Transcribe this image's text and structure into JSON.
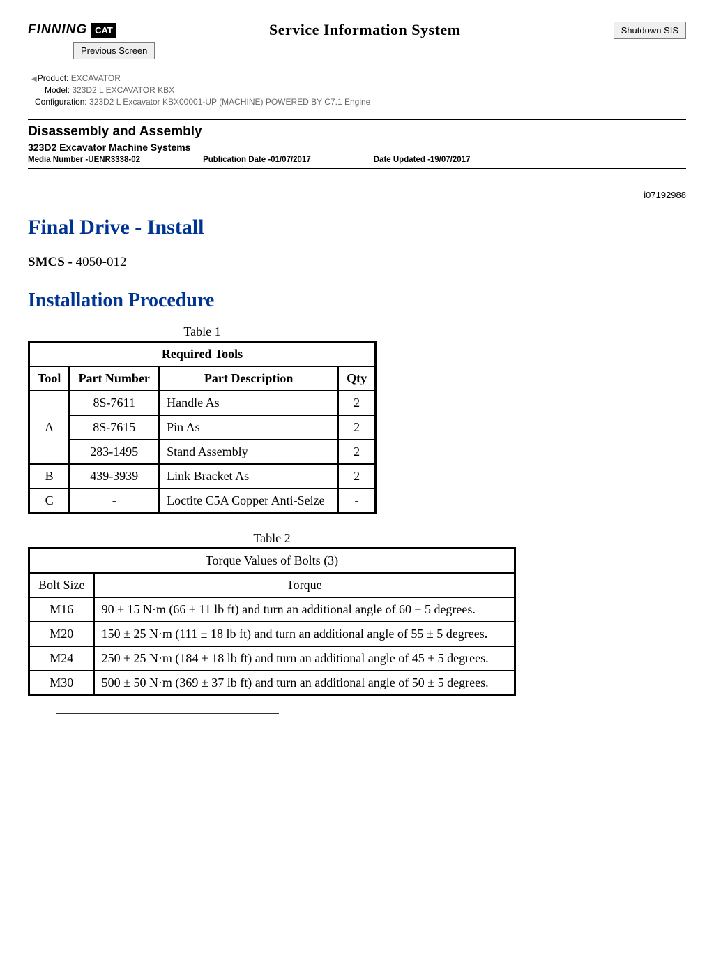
{
  "header": {
    "brand_text": "FINNING",
    "badge_text": "CAT",
    "title": "Service Information System",
    "shutdown_btn": "Shutdown SIS",
    "prev_btn": "Previous Screen"
  },
  "meta": {
    "product_label": "Product:",
    "product_value": "  EXCAVATOR ",
    "model_label": "Model:",
    "model_value": "  323D2 L EXCAVATOR KBX ",
    "config_label": "Configuration:",
    "config_value": " 323D2 L Excavator KBX00001-UP (MACHINE) POWERED BY C7.1 Engine "
  },
  "section": {
    "title": "Disassembly and Assembly",
    "sub": "323D2 Excavator Machine Systems",
    "media": "Media Number -UENR3338-02",
    "pub_date": "Publication Date -01/07/2017",
    "date_updated": "Date Updated -19/07/2017",
    "doc_id": "i07192988"
  },
  "article": {
    "title": "Final Drive - Install",
    "smcs_label": "SMCS -",
    "smcs_value": " 4050-012",
    "subheading": "Installation Procedure"
  },
  "table1": {
    "caption": "Table 1",
    "title": "Required Tools",
    "columns": [
      "Tool",
      "Part Number",
      "Part Description",
      "Qty"
    ],
    "rows": [
      {
        "tool": "A",
        "pn": "8S-7611",
        "desc": "Handle As",
        "qty": "2",
        "span_first": true,
        "rowspan": 3
      },
      {
        "tool": "",
        "pn": "8S-7615",
        "desc": "Pin As",
        "qty": "2"
      },
      {
        "tool": "",
        "pn": "283-1495",
        "desc": "Stand Assembly",
        "qty": "2"
      },
      {
        "tool": "B",
        "pn": "439-3939",
        "desc": "Link Bracket As",
        "qty": "2",
        "span_first": true,
        "rowspan": 1
      },
      {
        "tool": "C",
        "pn": "- ",
        "desc": "Loctite C5A Copper Anti-Seize",
        "qty": "- ",
        "span_first": true,
        "rowspan": 1
      }
    ]
  },
  "table2": {
    "caption": "Table 2",
    "title": "Torque Values of Bolts (3)",
    "columns": [
      "Bolt Size",
      "Torque"
    ],
    "rows": [
      {
        "size": "M16",
        "torque": "90 ± 15 N·m (66 ± 11 lb ft) and turn an additional angle of 60 ± 5 degrees."
      },
      {
        "size": "M20",
        "torque": "150 ± 25 N·m (111 ± 18 lb ft) and turn an additional angle of 55 ± 5 degrees."
      },
      {
        "size": "M24",
        "torque": "250 ± 25 N·m (184 ± 18 lb ft) and turn an additional angle of 45 ± 5 degrees."
      },
      {
        "size": "M30",
        "torque": "500 ± 50 N·m (369 ± 37 lb ft) and turn an additional angle of 50 ± 5 degrees."
      }
    ]
  }
}
